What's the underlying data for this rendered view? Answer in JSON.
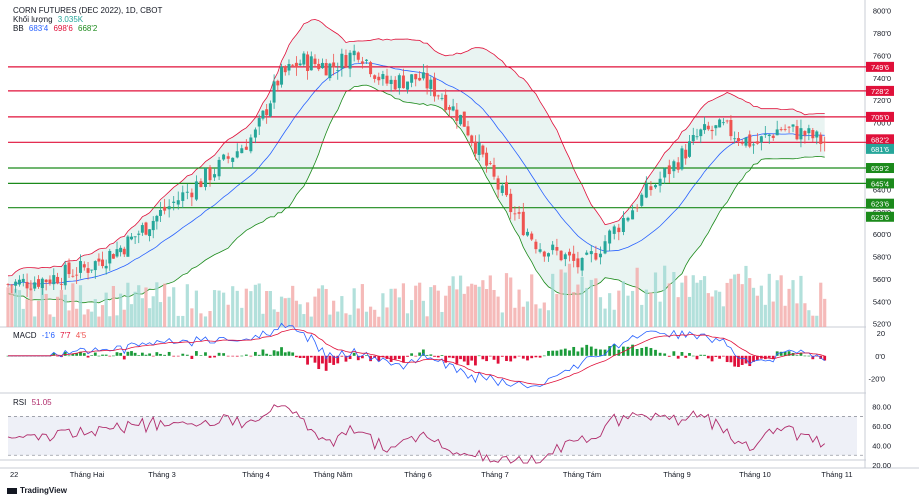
{
  "header": {
    "title": "CORN FUTURES (DEC 2022), 1D, CBOT",
    "volume_label": "Khối lượng",
    "volume_value": "3.035K",
    "bb_label": "BB",
    "bb_values": [
      "683'4",
      "698'6",
      "668'2"
    ]
  },
  "macd": {
    "label": "MACD",
    "values": [
      "-1'6",
      "7'7",
      "4'5"
    ],
    "axis_ticks": [
      "20",
      "0'0",
      "-20'0"
    ]
  },
  "rsi": {
    "label": "RSI",
    "value": "51.05",
    "axis_ticks": [
      "80.00",
      "60.00",
      "40.00",
      "20.00"
    ]
  },
  "price_axis": {
    "ticks": [
      "800'0",
      "780'0",
      "760'0",
      "740'0",
      "720'0",
      "700'0",
      "680'0",
      "660'0",
      "640'0",
      "620'0",
      "600'0",
      "580'0",
      "560'0",
      "540'0",
      "520'0"
    ],
    "level_labels": [
      {
        "text": "749'6",
        "color": "#e0103a"
      },
      {
        "text": "728'2",
        "color": "#e0103a"
      },
      {
        "text": "705'0",
        "color": "#e0103a"
      },
      {
        "text": "682'2",
        "color": "#e0103a"
      },
      {
        "text": "681'6",
        "color": "#26a69a"
      },
      {
        "text": "659'2",
        "color": "#1b8a1b"
      },
      {
        "text": "645'4",
        "color": "#1b8a1b"
      },
      {
        "text": "623'6",
        "color": "#1b8a1b"
      },
      {
        "text": "623'6",
        "color": "#1b8a1b"
      }
    ]
  },
  "time_axis": {
    "labels": [
      "22",
      "Tháng Hai",
      "Tháng 3",
      "Tháng 4",
      "Tháng Năm",
      "Tháng 6",
      "Tháng 7",
      "Tháng Tám",
      "Tháng 9",
      "Tháng 10",
      "Tháng 11"
    ]
  },
  "brand": {
    "text": "TradingView"
  },
  "colors": {
    "up": "#26a69a",
    "down": "#ef5350",
    "resistance": "#e0103a",
    "support": "#1b8a1b",
    "bb_upper": "#e0103a",
    "bb_basis": "#2962ff",
    "bb_lower": "#1b8a1b",
    "rsi_line": "#b02d6c"
  },
  "chart_data": {
    "type": "line",
    "title": "CORN FUTURES (DEC 2022), 1D, CBOT",
    "price_range": [
      517,
      806
    ],
    "horizontal_levels": {
      "resistance": [
        749.75,
        728.25,
        705.0,
        682.25
      ],
      "support": [
        659.25,
        645.5,
        623.75
      ]
    },
    "price_path": {
      "x_month_index": [
        0.0,
        0.5,
        1.0,
        1.5,
        2.0,
        2.3,
        2.6,
        3.0,
        3.3,
        3.6,
        4.0,
        4.3,
        4.6,
        5.0,
        5.3,
        5.6,
        5.9,
        6.2,
        6.5,
        6.8,
        7.0,
        7.3,
        7.6,
        8.0,
        8.3,
        8.6,
        9.0,
        9.3,
        9.6,
        9.85
      ],
      "close": [
        555,
        560,
        570,
        590,
        620,
        640,
        660,
        690,
        740,
        755,
        750,
        765,
        735,
        740,
        725,
        700,
        660,
        620,
        590,
        580,
        570,
        600,
        630,
        665,
        690,
        695,
        680,
        695,
        690,
        682
      ]
    },
    "macd_range": [
      -30,
      20
    ],
    "rsi_range": [
      20,
      90
    ],
    "rsi_bands": [
      70,
      30
    ]
  }
}
